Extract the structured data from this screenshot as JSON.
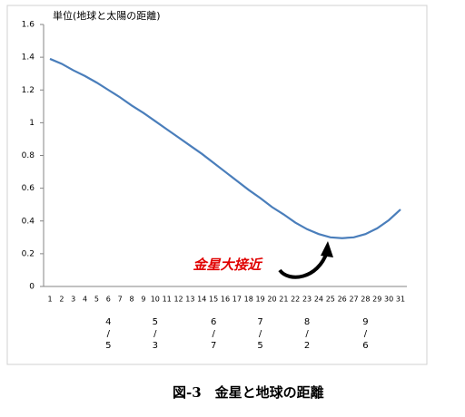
{
  "chart_data": {
    "type": "line",
    "y_axis_label": "単位(地球と太陽の距離)",
    "categories": [
      "1",
      "2",
      "3",
      "4",
      "5",
      "6",
      "7",
      "8",
      "9",
      "10",
      "11",
      "12",
      "13",
      "14",
      "15",
      "16",
      "17",
      "18",
      "19",
      "20",
      "21",
      "22",
      "23",
      "24",
      "25",
      "26",
      "27",
      "28",
      "29",
      "30",
      "31"
    ],
    "date_labels": [
      null,
      null,
      null,
      null,
      null,
      "4/5",
      null,
      null,
      null,
      "5/3",
      null,
      null,
      null,
      null,
      "6/7",
      null,
      null,
      null,
      "7/5",
      null,
      null,
      null,
      "8/2",
      null,
      null,
      null,
      null,
      "9/6",
      null,
      null,
      null
    ],
    "series": [
      {
        "color": "#4a7ebb",
        "values": [
          1.39,
          1.36,
          1.32,
          1.285,
          1.245,
          1.2,
          1.155,
          1.105,
          1.06,
          1.01,
          0.96,
          0.91,
          0.86,
          0.81,
          0.755,
          0.7,
          0.645,
          0.59,
          0.54,
          0.485,
          0.44,
          0.39,
          0.35,
          0.32,
          0.3,
          0.295,
          0.3,
          0.32,
          0.355,
          0.405,
          0.47
        ]
      }
    ],
    "ylim": [
      0,
      1.6
    ],
    "yticks": [
      0,
      0.2,
      0.4,
      0.6,
      0.8,
      1,
      1.2,
      1.4,
      1.6
    ],
    "annotation": "金星大接近",
    "caption": "図-3　金星と地球の距離"
  }
}
